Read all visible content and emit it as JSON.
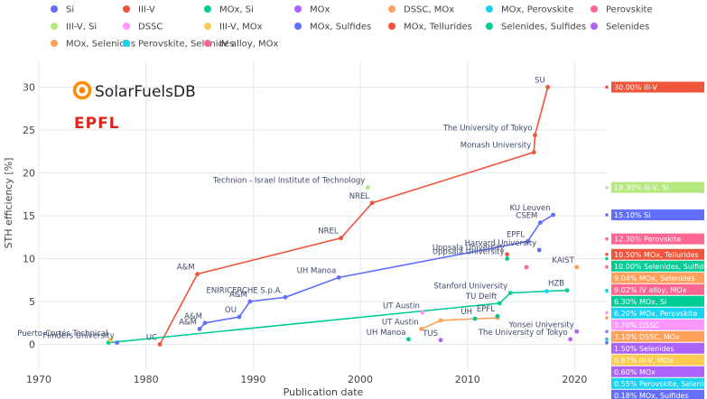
{
  "chart_data": {
    "type": "line",
    "xlabel": "Publication date",
    "ylabel": "STH efficiency [%]",
    "xlim": [
      1970,
      2023
    ],
    "ylim": [
      -3,
      33
    ],
    "x_ticks": [
      1970,
      1980,
      1990,
      2000,
      2010,
      2020
    ],
    "y_ticks": [
      0,
      5,
      10,
      15,
      20,
      25,
      30
    ],
    "grid": true,
    "legend_position": "top",
    "legend": [
      {
        "name": "Si",
        "color": "#636efa"
      },
      {
        "name": "III-V",
        "color": "#ef553b"
      },
      {
        "name": "MOx, Si",
        "color": "#00cc96"
      },
      {
        "name": "MOx",
        "color": "#ab63fa"
      },
      {
        "name": "DSSC, MOx",
        "color": "#ffa15a"
      },
      {
        "name": "MOx, Perovskite",
        "color": "#19d3f3"
      },
      {
        "name": "Perovskite",
        "color": "#ff6692"
      },
      {
        "name": "III-V, Si",
        "color": "#b6e880"
      },
      {
        "name": "DSSC",
        "color": "#ff97ff"
      },
      {
        "name": "III-V, MOx",
        "color": "#fecb52"
      },
      {
        "name": "MOx, Sulfides",
        "color": "#636efa"
      },
      {
        "name": "MOx, Tellurides",
        "color": "#ef553b"
      },
      {
        "name": "Selenides, Sulfides",
        "color": "#00cc96"
      },
      {
        "name": "Selenides",
        "color": "#ab63fa"
      },
      {
        "name": "MOx, Selenides",
        "color": "#ffa15a"
      },
      {
        "name": "Perovskite, Selenides",
        "color": "#19d3f3"
      },
      {
        "name": "IV alloy, MOx",
        "color": "#ff6692"
      }
    ],
    "series": [
      {
        "name": "III-V",
        "color": "#ef553b",
        "points": [
          {
            "x": 1981.3,
            "y": 0.0,
            "label": "UC"
          },
          {
            "x": 1984.8,
            "y": 8.2,
            "label": "A&M"
          },
          {
            "x": 1998.2,
            "y": 12.4,
            "label": "NREL"
          },
          {
            "x": 2001.1,
            "y": 16.5,
            "label": "NREL"
          },
          {
            "x": 2016.2,
            "y": 22.4,
            "label": "Monash University"
          },
          {
            "x": 2016.3,
            "y": 24.4,
            "label": "The University of Tokyo"
          },
          {
            "x": 2017.5,
            "y": 30.0,
            "label": "SU"
          }
        ]
      },
      {
        "name": "Si",
        "color": "#636efa",
        "points": [
          {
            "x": 1985.0,
            "y": 1.8,
            "label": "A&M"
          },
          {
            "x": 1985.5,
            "y": 2.5,
            "label": "A&M"
          },
          {
            "x": 1988.7,
            "y": 3.2,
            "label": "OU"
          },
          {
            "x": 1989.7,
            "y": 5.0,
            "label": "A&M"
          },
          {
            "x": 1993.0,
            "y": 5.5,
            "label": "ENIRICERCHE S.p.A."
          },
          {
            "x": 1998.0,
            "y": 7.8,
            "label": "UH Manoa"
          },
          {
            "x": 2015.6,
            "y": 12.0,
            "label": "EPFL"
          },
          {
            "x": 2016.8,
            "y": 14.2,
            "label": "CSEM"
          },
          {
            "x": 2018.0,
            "y": 15.1,
            "label": "KU Leuven"
          }
        ]
      },
      {
        "name": "MOx, Si",
        "color": "#00cc96",
        "points": [
          {
            "x": 1976.5,
            "y": 0.2,
            "label": ""
          },
          {
            "x": 2013.0,
            "y": 4.8,
            "label": "TU Delft"
          },
          {
            "x": 2014.0,
            "y": 6.0,
            "label": "Stanford University"
          },
          {
            "x": 2019.3,
            "y": 6.3,
            "label": "HZB"
          }
        ]
      },
      {
        "name": "DSSC, MOx",
        "color": "#ffa15a",
        "points": [
          {
            "x": 2005.7,
            "y": 1.8,
            "label": "UT Austin"
          },
          {
            "x": 2007.5,
            "y": 2.8,
            "label": ""
          },
          {
            "x": 2012.8,
            "y": 3.1,
            "label": ""
          }
        ]
      }
    ],
    "points": [
      {
        "x": 1977.3,
        "y": 0.2,
        "label": "Flinders University",
        "color": "#636efa"
      },
      {
        "x": 1976.7,
        "y": 0.5,
        "label": "Puerto-Cortés Technical",
        "color": "#fecb52"
      },
      {
        "x": 2000.7,
        "y": 18.3,
        "label": "Technion - Israel Institute of Technology",
        "color": "#b6e880"
      },
      {
        "x": 2013.7,
        "y": 10.5,
        "label": "Uppsala University",
        "color": "#ef553b"
      },
      {
        "x": 2013.7,
        "y": 10.0,
        "label": "Uppsala University",
        "color": "#00cc96"
      },
      {
        "x": 2016.7,
        "y": 11.0,
        "label": "Harvard University",
        "color": "#636efa"
      },
      {
        "x": 2017.4,
        "y": 6.2,
        "label": "",
        "color": "#19d3f3"
      },
      {
        "x": 2015.5,
        "y": 9.0,
        "label": "",
        "color": "#ff6692"
      },
      {
        "x": 2020.2,
        "y": 9.0,
        "label": "KAIST",
        "color": "#ffa15a"
      },
      {
        "x": 2005.8,
        "y": 3.7,
        "label": "UT Austin",
        "color": "#ff97ff"
      },
      {
        "x": 2004.5,
        "y": 0.6,
        "label": "UH Manoa",
        "color": "#00cc96"
      },
      {
        "x": 2007.5,
        "y": 0.5,
        "label": "TUS",
        "color": "#ab63fa"
      },
      {
        "x": 2019.6,
        "y": 0.6,
        "label": "The University of Tokyo",
        "color": "#ab63fa"
      },
      {
        "x": 2020.2,
        "y": 1.5,
        "label": "Yonsei University",
        "color": "#ab63fa"
      },
      {
        "x": 2010.7,
        "y": 3.0,
        "label": "UH",
        "color": "#00cc96"
      },
      {
        "x": 2012.8,
        "y": 3.3,
        "label": "EPFL",
        "color": "#00cc96"
      }
    ],
    "right_labels": [
      {
        "text": "30.00% III-V",
        "y": 30.0,
        "color": "#ef553b"
      },
      {
        "text": "18.30% III-V, Si",
        "y": 18.3,
        "color": "#b6e880"
      },
      {
        "text": "15.10% Si",
        "y": 15.1,
        "color": "#636efa"
      },
      {
        "text": "12.30% Perovskite",
        "y": 12.3,
        "color": "#ff6692"
      },
      {
        "text": "10.50% MOx, Tellurides",
        "y": 10.5,
        "color": "#ef553b"
      },
      {
        "text": "10.00% Selenides, Sulfides",
        "y": 10.0,
        "color": "#00cc96"
      },
      {
        "text": "9.04% MOx, Selenides",
        "y": 9.04,
        "color": "#ffa15a"
      },
      {
        "text": "9.02% IV alloy, MOx",
        "y": 9.02,
        "color": "#ff6692"
      },
      {
        "text": "6.30% MOx, Si",
        "y": 6.3,
        "color": "#00cc96"
      },
      {
        "text": "6.20% MOx, Perovskite",
        "y": 6.2,
        "color": "#19d3f3"
      },
      {
        "text": "3.10% DSSC, MOx",
        "y": 3.1,
        "color": "#ffa15a"
      },
      {
        "text": "3.70% DSSC",
        "y": 3.7,
        "color": "#ff97ff"
      },
      {
        "text": "1.50% Selenides",
        "y": 1.5,
        "color": "#ab63fa"
      },
      {
        "text": "0.67% III-V, MOx",
        "y": 0.67,
        "color": "#fecb52"
      },
      {
        "text": "0.60% MOx",
        "y": 0.6,
        "color": "#ab63fa"
      },
      {
        "text": "0.55% Perovskite, Selenides",
        "y": 0.55,
        "color": "#19d3f3"
      },
      {
        "text": "0.18% MOx, Sulfides",
        "y": 0.18,
        "color": "#636efa"
      }
    ]
  },
  "branding": {
    "logo_text": "SolarFuelsDB",
    "org_text": "EPFL",
    "logo_color": "#ff8c00",
    "org_color": "#e2231a"
  },
  "colors": {
    "plot_background": "#ffffff",
    "grid": "#e8e8e8",
    "axis_text": "#444444"
  }
}
